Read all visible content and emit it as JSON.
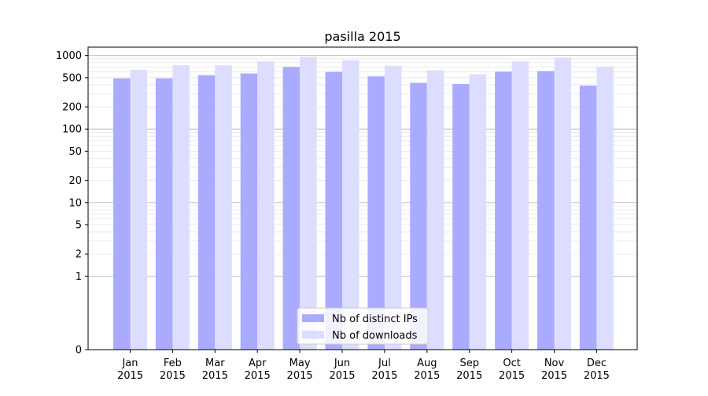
{
  "chart_data": {
    "type": "bar",
    "title": "pasilla 2015",
    "xlabel": "",
    "ylabel": "",
    "y_scale": "symlog",
    "ylim": [
      0,
      1300
    ],
    "y_ticks": [
      0,
      1,
      2,
      5,
      10,
      20,
      50,
      100,
      200,
      500,
      1000
    ],
    "y_tick_labels": [
      "0",
      "1",
      "2",
      "5",
      "10",
      "20",
      "50",
      "100",
      "200",
      "500",
      "1000"
    ],
    "grid": true,
    "legend_position": "bottom-center",
    "categories": [
      [
        "Jan",
        "2015"
      ],
      [
        "Feb",
        "2015"
      ],
      [
        "Mar",
        "2015"
      ],
      [
        "Apr",
        "2015"
      ],
      [
        "May",
        "2015"
      ],
      [
        "Jun",
        "2015"
      ],
      [
        "Jul",
        "2015"
      ],
      [
        "Aug",
        "2015"
      ],
      [
        "Sep",
        "2015"
      ],
      [
        "Oct",
        "2015"
      ],
      [
        "Nov",
        "2015"
      ],
      [
        "Dec",
        "2015"
      ]
    ],
    "series": [
      {
        "name": "Nb of distinct IPs",
        "color": "#aaaaff",
        "values": [
          490,
          490,
          540,
          570,
          700,
          600,
          520,
          425,
          410,
          605,
          615,
          390
        ]
      },
      {
        "name": "Nb of downloads",
        "color": "#ddddff",
        "values": [
          640,
          740,
          735,
          830,
          960,
          865,
          725,
          630,
          555,
          830,
          935,
          705
        ]
      }
    ]
  }
}
